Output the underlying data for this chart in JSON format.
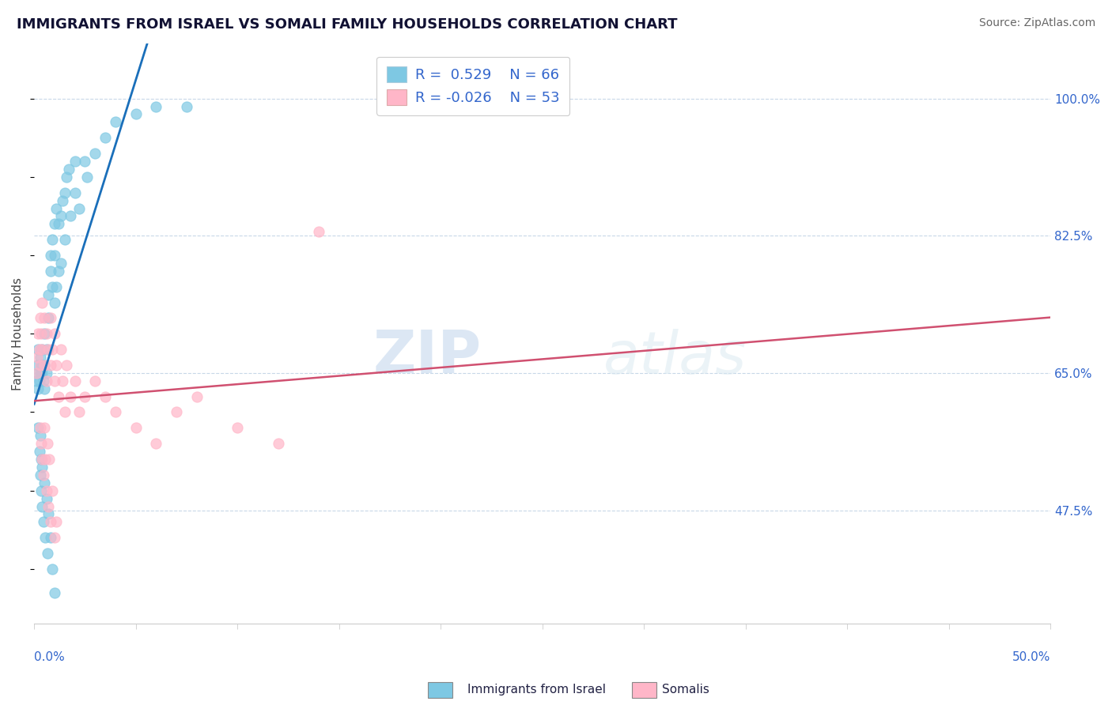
{
  "title": "IMMIGRANTS FROM ISRAEL VS SOMALI FAMILY HOUSEHOLDS CORRELATION CHART",
  "source": "Source: ZipAtlas.com",
  "ylabel": "Family Households",
  "ylabel_right_ticks": [
    "47.5%",
    "65.0%",
    "82.5%",
    "100.0%"
  ],
  "ylabel_right_vals": [
    47.5,
    65.0,
    82.5,
    100.0
  ],
  "xmin": 0.0,
  "xmax": 50.0,
  "ymin": 33.0,
  "ymax": 107.0,
  "legend_label1": "Immigrants from Israel",
  "legend_label2": "Somalis",
  "r1": 0.529,
  "n1": 66,
  "r2": -0.026,
  "n2": 53,
  "blue_color": "#7ec8e3",
  "pink_color": "#ffb6c8",
  "blue_line_color": "#1a6fba",
  "pink_line_color": "#d05070",
  "watermark_zip": "ZIP",
  "watermark_atlas": "atlas",
  "blue_points_x": [
    0.1,
    0.15,
    0.15,
    0.2,
    0.2,
    0.25,
    0.3,
    0.3,
    0.35,
    0.4,
    0.4,
    0.45,
    0.5,
    0.5,
    0.5,
    0.6,
    0.6,
    0.7,
    0.7,
    0.8,
    0.8,
    0.9,
    0.9,
    1.0,
    1.0,
    1.0,
    1.1,
    1.1,
    1.2,
    1.2,
    1.3,
    1.3,
    1.4,
    1.5,
    1.5,
    1.6,
    1.7,
    1.8,
    2.0,
    2.0,
    2.2,
    2.5,
    2.6,
    3.0,
    3.5,
    4.0,
    5.0,
    6.0,
    7.5,
    0.2,
    0.25,
    0.3,
    0.3,
    0.35,
    0.35,
    0.4,
    0.4,
    0.45,
    0.5,
    0.55,
    0.6,
    0.65,
    0.7,
    0.8,
    0.9,
    1.0
  ],
  "blue_points_y": [
    64.0,
    65.0,
    66.0,
    63.0,
    68.0,
    64.0,
    67.0,
    65.0,
    66.0,
    65.0,
    68.0,
    64.0,
    70.0,
    66.0,
    63.0,
    68.0,
    65.0,
    72.0,
    75.0,
    78.0,
    80.0,
    82.0,
    76.0,
    84.0,
    80.0,
    74.0,
    86.0,
    76.0,
    84.0,
    78.0,
    85.0,
    79.0,
    87.0,
    88.0,
    82.0,
    90.0,
    91.0,
    85.0,
    92.0,
    88.0,
    86.0,
    92.0,
    90.0,
    93.0,
    95.0,
    97.0,
    98.0,
    99.0,
    99.0,
    58.0,
    55.0,
    52.0,
    57.0,
    50.0,
    54.0,
    48.0,
    53.0,
    46.0,
    51.0,
    44.0,
    49.0,
    42.0,
    47.0,
    44.0,
    40.0,
    37.0
  ],
  "pink_points_x": [
    0.1,
    0.15,
    0.2,
    0.25,
    0.3,
    0.3,
    0.35,
    0.4,
    0.4,
    0.5,
    0.5,
    0.6,
    0.6,
    0.7,
    0.8,
    0.8,
    0.9,
    1.0,
    1.0,
    1.1,
    1.2,
    1.3,
    1.4,
    1.5,
    1.6,
    1.8,
    2.0,
    2.2,
    2.5,
    3.0,
    3.5,
    4.0,
    5.0,
    6.0,
    7.0,
    8.0,
    10.0,
    12.0,
    0.3,
    0.35,
    0.4,
    0.45,
    0.5,
    0.55,
    0.6,
    0.65,
    0.7,
    0.75,
    0.8,
    0.9,
    1.0,
    1.1,
    14.0
  ],
  "pink_points_y": [
    65.0,
    67.0,
    70.0,
    68.0,
    72.0,
    66.0,
    70.0,
    68.0,
    74.0,
    72.0,
    66.0,
    70.0,
    64.0,
    68.0,
    66.0,
    72.0,
    68.0,
    64.0,
    70.0,
    66.0,
    62.0,
    68.0,
    64.0,
    60.0,
    66.0,
    62.0,
    64.0,
    60.0,
    62.0,
    64.0,
    62.0,
    60.0,
    58.0,
    56.0,
    60.0,
    62.0,
    58.0,
    56.0,
    58.0,
    56.0,
    54.0,
    52.0,
    58.0,
    54.0,
    50.0,
    56.0,
    48.0,
    54.0,
    46.0,
    50.0,
    44.0,
    46.0,
    83.0
  ]
}
